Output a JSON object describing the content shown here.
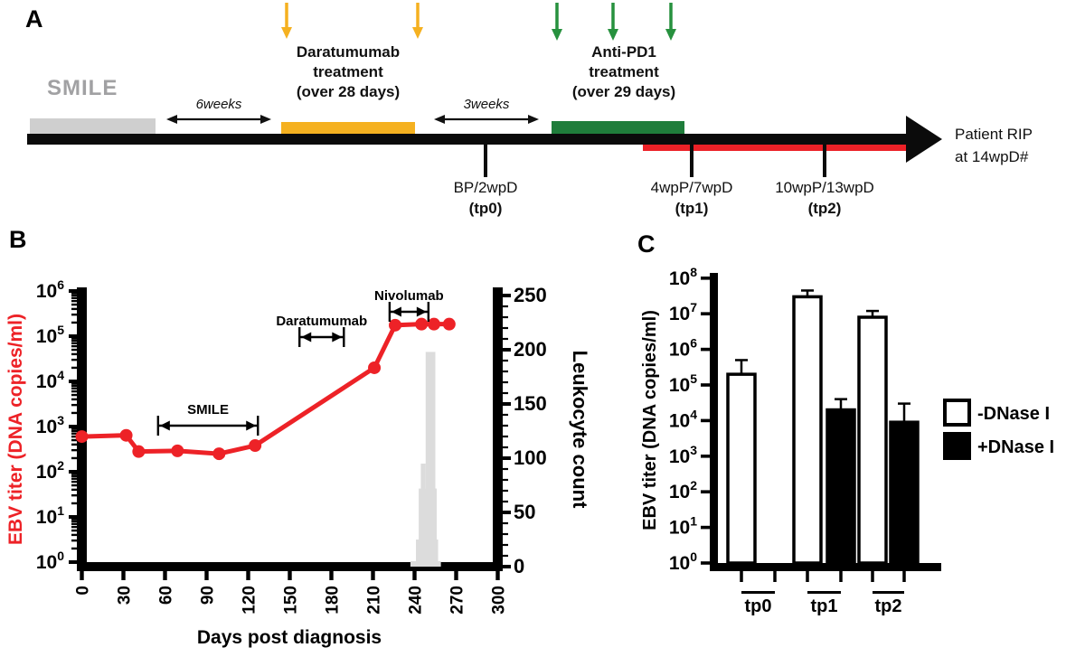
{
  "figure": {
    "panel_labels": {
      "a": "A",
      "b": "B",
      "c": "C"
    }
  },
  "panel_a": {
    "smile_label": "SMILE",
    "interval1_label": "6weeks",
    "daratumumab_lines": [
      "Daratumumab",
      "treatment",
      "(over 28 days)"
    ],
    "interval2_label": "3weeks",
    "antipd1_lines": [
      "Anti-PD1",
      "treatment",
      "(over 29 days)"
    ],
    "timepoints": [
      {
        "name": "BP/2wpD",
        "tp": "(tp0)"
      },
      {
        "name": "4wpP/7wpD",
        "tp": "(tp1)"
      },
      {
        "name": "10wpP/13wpD",
        "tp": "(tp2)"
      }
    ],
    "endpoint_lines": [
      "Patient RIP",
      "at 14wpD#"
    ],
    "colors": {
      "yellow": "#F5B120",
      "green_bar": "#1F7D3B",
      "green_arrow": "#27913E",
      "red": "#EC2127",
      "gray_bar": "#CFCFCF",
      "gray_text": "#A1A1A3",
      "black": "#0B0B0B"
    }
  },
  "chart_data": [
    {
      "panel": "B",
      "type": "line",
      "xlabel": "Days post diagnosis",
      "ylabel_left": "EBV titer (DNA copies/ml)",
      "ylabel_right": "Leukocyte count",
      "xlim": [
        0,
        300
      ],
      "x_ticks": [
        0,
        30,
        60,
        90,
        120,
        150,
        180,
        210,
        240,
        270,
        300
      ],
      "y_left_scale": "log10",
      "y_left_exponent_range": [
        0,
        6
      ],
      "y_right_range": [
        0,
        250
      ],
      "y_right_major_step": 50,
      "y_right_minor_step": 10,
      "colors": {
        "line": "#ED2227",
        "left_axis_text": "#ED2227",
        "histogram": "#DCDCDC",
        "axis": "#000000"
      },
      "series": [
        {
          "name": "EBV titer",
          "style": "line",
          "axis": "left",
          "points": [
            [
              0,
              600
            ],
            [
              32,
              640
            ],
            [
              41,
              280
            ],
            [
              69,
              290
            ],
            [
              99,
              250
            ],
            [
              125,
              380
            ],
            [
              211,
              20000
            ],
            [
              226,
              175000
            ],
            [
              245,
              185000
            ],
            [
              254,
              185000
            ],
            [
              265,
              185000
            ]
          ]
        },
        {
          "name": "Leukocyte count",
          "style": "histogram",
          "axis": "right",
          "bars": [
            [
              237,
              259,
              5
            ],
            [
              241,
              257,
              25
            ],
            [
              243,
              256,
              72
            ],
            [
              244.5,
              248,
              95
            ],
            [
              248,
              255,
              198
            ]
          ]
        }
      ],
      "annotations": [
        {
          "label": "SMILE",
          "x0": 55,
          "x1": 127,
          "y_exp": 3.02
        },
        {
          "label": "Daratumumab",
          "x0": 157,
          "x1": 189,
          "y_exp": 4.98
        },
        {
          "label": "Nivolumab",
          "x0": 222,
          "x1": 250,
          "y_exp": 5.54
        }
      ]
    },
    {
      "panel": "C",
      "type": "bar",
      "ylabel": "EBV titer (DNA copies/ml)",
      "y_scale": "log10",
      "y_exponent_range": [
        0,
        8
      ],
      "groups": [
        "tp0",
        "tp1",
        "tp2"
      ],
      "series": [
        {
          "name": "-DNase I",
          "fill": "#FFFFFF",
          "values": [
            200000,
            30000000,
            8000000
          ],
          "error_tops": [
            500000,
            45000000,
            12000000
          ]
        },
        {
          "name": "+DNase I",
          "fill": "#000000",
          "values": [
            null,
            20000,
            9000
          ],
          "error_tops": [
            null,
            40000,
            30000
          ]
        }
      ],
      "legend": [
        {
          "label": "-DNase I",
          "fill": "#FFFFFF"
        },
        {
          "label": "+DNase I",
          "fill": "#000000"
        }
      ]
    }
  ]
}
